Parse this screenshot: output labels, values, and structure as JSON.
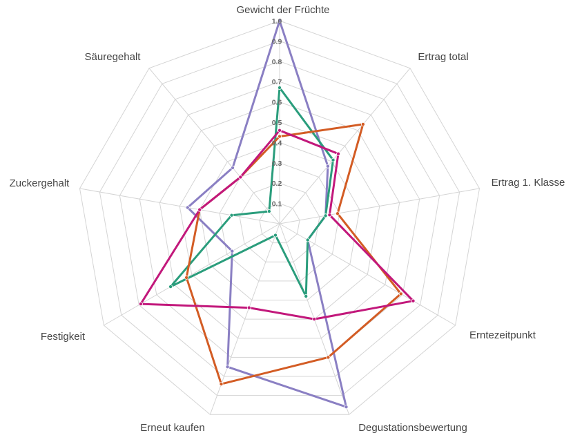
{
  "chart_data": {
    "type": "radar",
    "axes": [
      "Gewicht der Früchte",
      "Ertrag total",
      "Ertrag 1. Klasse",
      "Erntezeitpunkt",
      "Degustationsbewertung",
      "Erneut kaufen",
      "Festigkeit",
      "Zuckergehalt",
      "Säuregehalt"
    ],
    "ticks": [
      "0.1",
      "0.2",
      "0.3",
      "0.4",
      "0.5",
      "0.6",
      "0.7",
      "0.8",
      "0.9",
      "1.0"
    ],
    "range": [
      0,
      1
    ],
    "grid": true,
    "legend": "none",
    "series": [
      {
        "color": "#8a7fc3",
        "values": [
          1.0,
          0.37,
          0.23,
          0.16,
          0.96,
          0.75,
          0.27,
          0.46,
          0.36
        ]
      },
      {
        "color": "#2a9d7c",
        "values": [
          0.67,
          0.41,
          0.23,
          0.16,
          0.38,
          0.06,
          0.62,
          0.24,
          0.08
        ]
      },
      {
        "color": "#d35c24",
        "values": [
          0.43,
          0.64,
          0.29,
          0.69,
          0.7,
          0.84,
          0.53,
          0.4,
          0.3
        ]
      },
      {
        "color": "#c2187b",
        "values": [
          0.46,
          0.45,
          0.25,
          0.76,
          0.5,
          0.44,
          0.79,
          0.4,
          0.3
        ]
      }
    ]
  }
}
